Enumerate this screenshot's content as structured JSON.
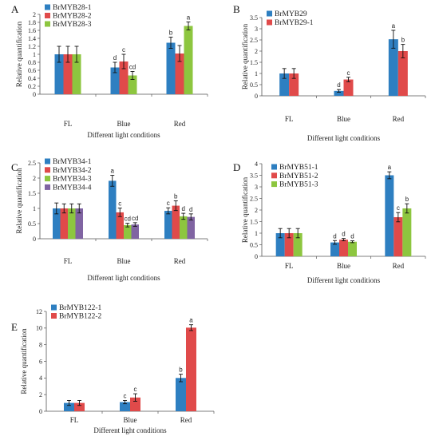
{
  "chart_data": [
    {
      "panel": "A",
      "type": "bar",
      "categories": [
        "FL",
        "Blue",
        "Red"
      ],
      "ylabel": "Relative quantification",
      "xlabel": "Different light conditions",
      "ylim": [
        0,
        2
      ],
      "yticks": [
        "0",
        "0.2",
        "0.4",
        "0.6",
        "0.8",
        "1",
        "1.2",
        "1.4",
        "1.6",
        "1.8",
        "2"
      ],
      "legend_position": "top-left",
      "series": [
        {
          "name": "BrMYB28-1",
          "color": "#2e7fc1",
          "values": [
            1.0,
            0.67,
            1.29
          ],
          "errors": [
            0.2,
            0.13,
            0.14
          ],
          "letters": [
            "",
            "d",
            "b"
          ]
        },
        {
          "name": "BrMYB28-2",
          "color": "#e04a4a",
          "values": [
            1.0,
            0.82,
            1.02
          ],
          "errors": [
            0.2,
            0.18,
            0.2
          ],
          "letters": [
            "",
            "c",
            ""
          ]
        },
        {
          "name": "BrMYB28-3",
          "color": "#8dc63f",
          "values": [
            1.0,
            0.47,
            1.71
          ],
          "errors": [
            0.2,
            0.1,
            0.1
          ],
          "letters": [
            "",
            "cd",
            "a"
          ]
        }
      ]
    },
    {
      "panel": "B",
      "type": "bar",
      "categories": [
        "FL",
        "Blue",
        "Red"
      ],
      "ylabel": "Relative quantification",
      "xlabel": "Different light  conditions",
      "ylim": [
        0,
        3.5
      ],
      "yticks": [
        "0",
        "0.5",
        "1",
        "1.5",
        "2",
        "2.5",
        "3",
        "3.5"
      ],
      "legend_position": "top-left",
      "series": [
        {
          "name": "BrMYB29",
          "color": "#2e7fc1",
          "values": [
            1.0,
            0.22,
            2.53
          ],
          "errors": [
            0.22,
            0.06,
            0.4
          ],
          "letters": [
            "",
            "d",
            "a"
          ]
        },
        {
          "name": "BrMYB29-1",
          "color": "#e04a4a",
          "values": [
            1.0,
            0.73,
            2.0
          ],
          "errors": [
            0.22,
            0.1,
            0.3
          ],
          "letters": [
            "",
            "c",
            "b"
          ]
        }
      ]
    },
    {
      "panel": "C",
      "type": "bar",
      "categories": [
        "FL",
        "Blue",
        "Red"
      ],
      "ylabel": "Relative quantification",
      "xlabel": "Different light conditions",
      "ylim": [
        0,
        2.5
      ],
      "yticks": [
        "0",
        "0.5",
        "1",
        "1.5",
        "2",
        "2.5"
      ],
      "legend_position": "top-left",
      "series": [
        {
          "name": "BrMYB34-1",
          "color": "#2e7fc1",
          "values": [
            1.0,
            1.91,
            0.92
          ],
          "errors": [
            0.18,
            0.18,
            0.1
          ],
          "letters": [
            "",
            "a",
            "c"
          ]
        },
        {
          "name": "BrMYB34-2",
          "color": "#e04a4a",
          "values": [
            1.0,
            0.87,
            1.09
          ],
          "errors": [
            0.15,
            0.14,
            0.16
          ],
          "letters": [
            "",
            "c",
            "b"
          ]
        },
        {
          "name": "BrMYB34-3",
          "color": "#8dc63f",
          "values": [
            1.0,
            0.45,
            0.74
          ],
          "errors": [
            0.15,
            0.06,
            0.1
          ],
          "letters": [
            "",
            "cd",
            "d"
          ]
        },
        {
          "name": "BrMYB34-4",
          "color": "#8064a2",
          "values": [
            1.0,
            0.47,
            0.72
          ],
          "errors": [
            0.15,
            0.06,
            0.1
          ],
          "letters": [
            "",
            "cd",
            "d"
          ]
        }
      ]
    },
    {
      "panel": "D",
      "type": "bar",
      "categories": [
        "FL",
        "Blue",
        "Red"
      ],
      "ylabel": "Relative quantification",
      "xlabel": "Different light conditions",
      "ylim": [
        0,
        4
      ],
      "yticks": [
        "0",
        "0.5",
        "1",
        "1.5",
        "2",
        "2.5",
        "3",
        "3.5",
        "4"
      ],
      "legend_position": "top-left",
      "series": [
        {
          "name": "BrMYB51-1",
          "color": "#2e7fc1",
          "values": [
            1.0,
            0.6,
            3.5
          ],
          "errors": [
            0.2,
            0.08,
            0.15
          ],
          "letters": [
            "",
            "d",
            "a"
          ]
        },
        {
          "name": "BrMYB51-2",
          "color": "#e04a4a",
          "values": [
            1.0,
            0.72,
            1.69
          ],
          "errors": [
            0.2,
            0.05,
            0.2
          ],
          "letters": [
            "",
            "d",
            "c"
          ]
        },
        {
          "name": "BrMYB51-3",
          "color": "#8dc63f",
          "values": [
            1.0,
            0.63,
            2.07
          ],
          "errors": [
            0.2,
            0.04,
            0.2
          ],
          "letters": [
            "",
            "d",
            "b"
          ]
        }
      ]
    },
    {
      "panel": "E",
      "type": "bar",
      "categories": [
        "FL",
        "Blue",
        "Red"
      ],
      "ylabel": "Relative quantification",
      "xlabel": "Different light conditions",
      "ylim": [
        0,
        12
      ],
      "yticks": [
        "0",
        "2",
        "4",
        "6",
        "8",
        "10",
        "12"
      ],
      "legend_position": "top-left",
      "series": [
        {
          "name": "BrMYB122-1",
          "color": "#2e7fc1",
          "values": [
            1.0,
            1.1,
            4.0
          ],
          "errors": [
            0.3,
            0.2,
            0.45
          ],
          "letters": [
            "",
            "c",
            "b"
          ]
        },
        {
          "name": "BrMYB122-2",
          "color": "#e04a4a",
          "values": [
            1.0,
            1.65,
            10.05
          ],
          "errors": [
            0.3,
            0.45,
            0.35
          ],
          "letters": [
            "",
            "c",
            "a"
          ]
        }
      ]
    }
  ]
}
